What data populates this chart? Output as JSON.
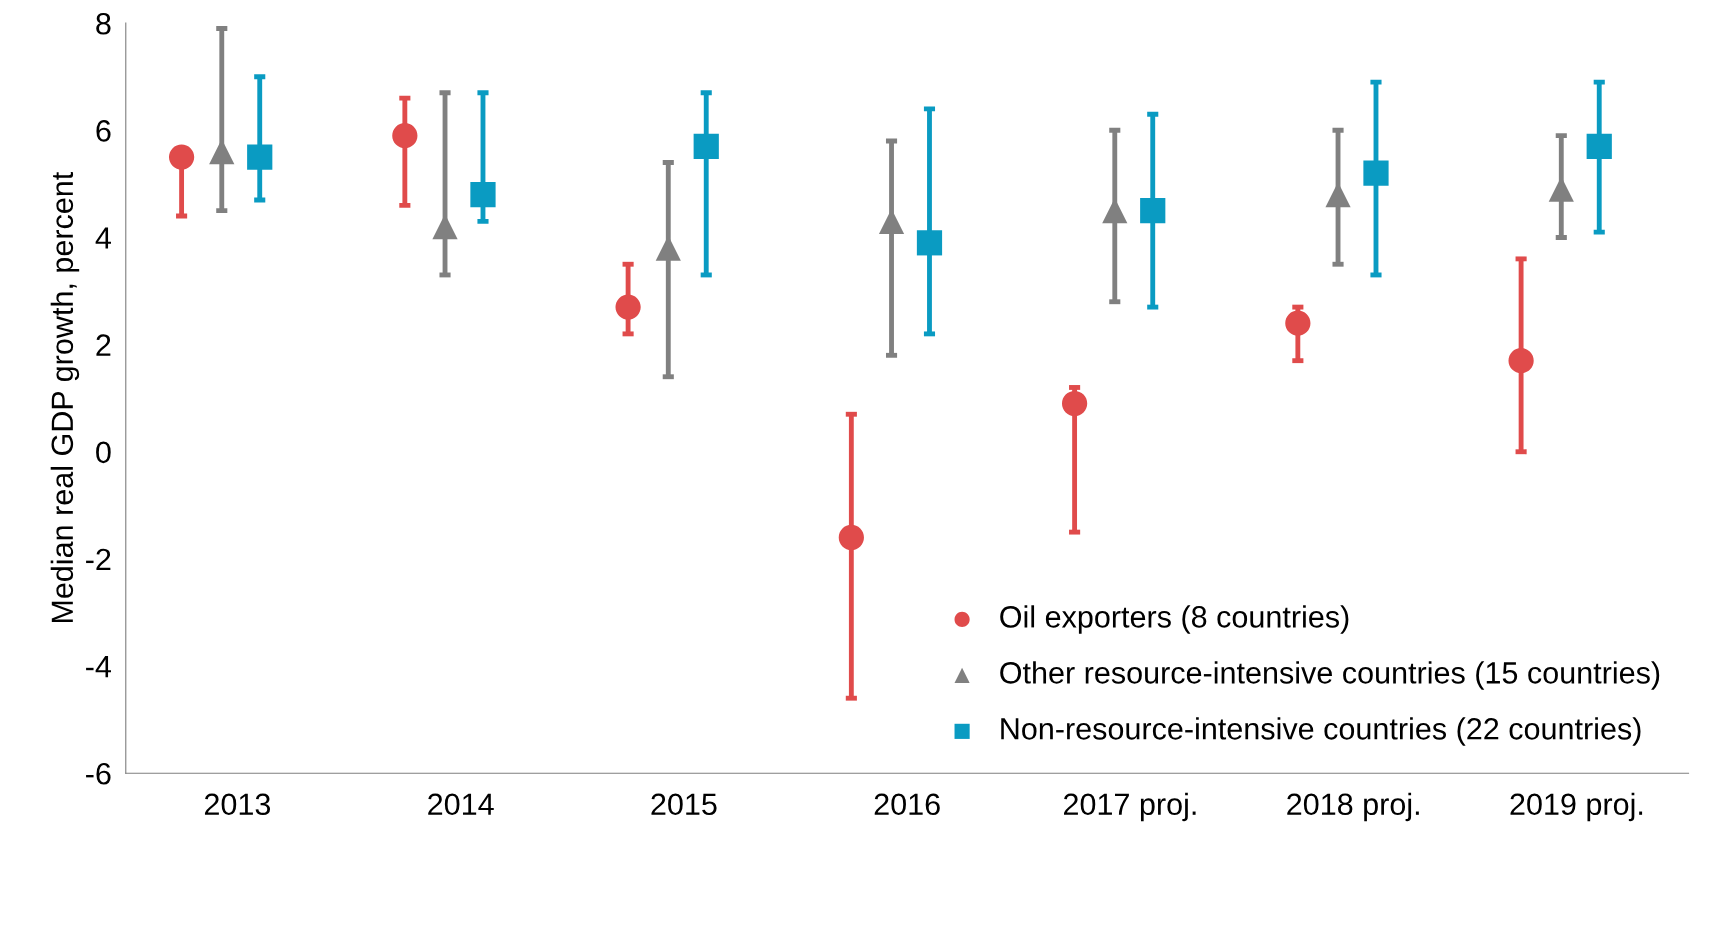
{
  "chart_data": {
    "type": "scatter",
    "ylabel": "Median real GDP growth, percent",
    "categories": [
      "2013",
      "2014",
      "2015",
      "2016",
      "2017 proj.",
      "2018 proj.",
      "2019 proj."
    ],
    "ylim": [
      -6,
      8
    ],
    "yticks": [
      {
        "value": -6,
        "label": "-6"
      },
      {
        "value": -4,
        "label": "-4"
      },
      {
        "value": -2,
        "label": "-2"
      },
      0,
      2,
      4,
      6,
      8
    ],
    "grid": false,
    "legend": "bottom right",
    "series": [
      {
        "name": "Oil exporters (8 countries)",
        "color": "#e04b4b",
        "marker": "circle",
        "values": [
          5.5,
          5.9,
          2.7,
          -1.6,
          0.9,
          2.4,
          1.7
        ],
        "errors": [
          [
            4.4,
            5.5
          ],
          [
            4.6,
            6.6
          ],
          [
            2.2,
            3.5
          ],
          [
            -4.6,
            0.7
          ],
          [
            -1.5,
            1.2
          ],
          [
            1.7,
            2.7
          ],
          [
            0.0,
            3.6
          ]
        ]
      },
      {
        "name": "Other resource-intensive countries (15 countries)",
        "color": "#808080",
        "marker": "triangle",
        "values": [
          5.6,
          4.2,
          3.8,
          4.3,
          4.5,
          4.8,
          4.9
        ],
        "errors": [
          [
            4.5,
            7.9
          ],
          [
            3.3,
            6.7
          ],
          [
            1.4,
            5.4
          ],
          [
            1.8,
            5.8
          ],
          [
            2.8,
            6.0
          ],
          [
            3.5,
            6.0
          ],
          [
            4.0,
            5.9
          ]
        ]
      },
      {
        "name": "Non-resource-intensive countries (22 countries)",
        "color": "#0a9bc2",
        "marker": "square",
        "values": [
          5.5,
          4.8,
          5.7,
          3.9,
          4.5,
          5.2,
          5.7
        ],
        "errors": [
          [
            4.7,
            7.0
          ],
          [
            4.3,
            6.7
          ],
          [
            3.3,
            6.7
          ],
          [
            2.2,
            6.4
          ],
          [
            2.7,
            6.3
          ],
          [
            3.3,
            6.9
          ],
          [
            4.1,
            6.9
          ]
        ]
      }
    ]
  }
}
